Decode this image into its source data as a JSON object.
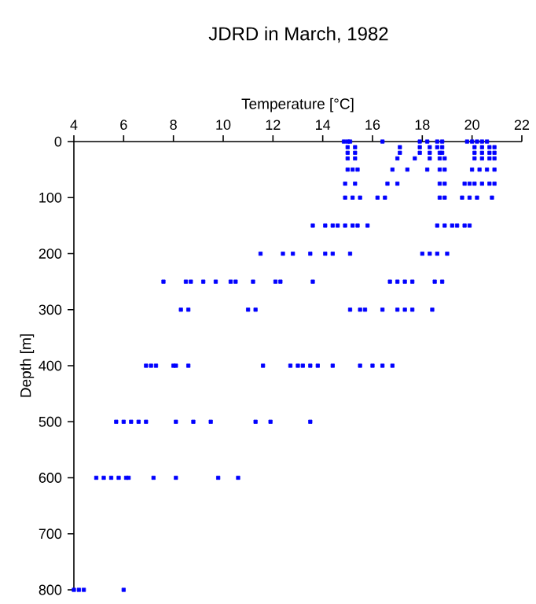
{
  "chart_data": {
    "type": "scatter",
    "title": "JDRD in March, 1982",
    "xlabel": "Temperature [°C]",
    "ylabel": "Depth [m]",
    "xlim": [
      4,
      22
    ],
    "ylim": [
      800,
      0
    ],
    "xticks": [
      4,
      6,
      8,
      10,
      12,
      14,
      16,
      18,
      20,
      22
    ],
    "yticks": [
      0,
      100,
      200,
      300,
      400,
      500,
      600,
      700,
      800
    ],
    "marker": "square",
    "series": [
      {
        "color": "#0000ff",
        "x": [
          14.85,
          15.0,
          15.1,
          16.4,
          17.9,
          18.2,
          18.6,
          18.8,
          19.8,
          20.0,
          20.2,
          20.4,
          20.6,
          15.0,
          15.3,
          17.1,
          17.9,
          18.3,
          18.6,
          18.8,
          20.1,
          20.4,
          20.7,
          20.9,
          15.0,
          15.3,
          17.1,
          17.9,
          18.3,
          18.7,
          18.8,
          20.1,
          20.4,
          20.7,
          20.9,
          15.0,
          15.3,
          17.0,
          17.7,
          18.3,
          18.7,
          18.9,
          20.1,
          20.4,
          20.7,
          20.9,
          15.0,
          15.2,
          15.4,
          16.8,
          17.4,
          18.2,
          18.7,
          18.9,
          20.0,
          20.3,
          20.6,
          20.9,
          14.9,
          15.3,
          16.6,
          17.0,
          18.7,
          18.9,
          19.7,
          19.9,
          20.1,
          20.4,
          20.7,
          20.9,
          14.9,
          15.2,
          15.5,
          16.2,
          16.5,
          18.7,
          18.9,
          19.6,
          19.9,
          20.2,
          20.8,
          13.6,
          14.1,
          14.4,
          14.6,
          14.9,
          15.2,
          15.4,
          15.8,
          18.6,
          18.9,
          19.2,
          19.4,
          19.7,
          19.9,
          11.5,
          12.4,
          12.8,
          13.5,
          14.1,
          14.4,
          15.1,
          18.0,
          18.3,
          18.6,
          19.0,
          7.6,
          8.5,
          8.7,
          9.2,
          9.7,
          10.3,
          10.5,
          11.2,
          12.1,
          12.3,
          13.6,
          16.7,
          17.0,
          17.3,
          17.6,
          18.5,
          18.8,
          8.3,
          8.6,
          11.0,
          11.3,
          15.1,
          15.5,
          15.7,
          16.4,
          17.0,
          17.3,
          17.6,
          18.4,
          6.9,
          7.1,
          7.3,
          8.0,
          8.1,
          8.6,
          11.6,
          12.7,
          13.0,
          13.2,
          13.5,
          13.8,
          14.4,
          15.5,
          16.0,
          16.4,
          16.8,
          5.7,
          6.0,
          6.3,
          6.6,
          6.9,
          8.1,
          8.8,
          9.5,
          11.3,
          11.9,
          13.5,
          4.9,
          5.2,
          5.5,
          5.8,
          6.1,
          6.2,
          7.2,
          8.1,
          9.8,
          10.6,
          4.0,
          4.2,
          4.4,
          6.0
        ],
        "values": [
          0,
          0,
          0,
          0,
          0,
          0,
          0,
          0,
          0,
          0,
          0,
          0,
          0,
          10,
          10,
          10,
          10,
          10,
          10,
          10,
          10,
          10,
          10,
          10,
          20,
          20,
          20,
          20,
          20,
          20,
          20,
          20,
          20,
          20,
          20,
          30,
          30,
          30,
          30,
          30,
          30,
          30,
          30,
          30,
          30,
          30,
          50,
          50,
          50,
          50,
          50,
          50,
          50,
          50,
          50,
          50,
          50,
          50,
          75,
          75,
          75,
          75,
          75,
          75,
          75,
          75,
          75,
          75,
          75,
          75,
          100,
          100,
          100,
          100,
          100,
          100,
          100,
          100,
          100,
          100,
          100,
          150,
          150,
          150,
          150,
          150,
          150,
          150,
          150,
          150,
          150,
          150,
          150,
          150,
          150,
          200,
          200,
          200,
          200,
          200,
          200,
          200,
          200,
          200,
          200,
          200,
          250,
          250,
          250,
          250,
          250,
          250,
          250,
          250,
          250,
          250,
          250,
          250,
          250,
          250,
          250,
          250,
          250,
          300,
          300,
          300,
          300,
          300,
          300,
          300,
          300,
          300,
          300,
          300,
          300,
          400,
          400,
          400,
          400,
          400,
          400,
          400,
          400,
          400,
          400,
          400,
          400,
          400,
          400,
          400,
          400,
          400,
          500,
          500,
          500,
          500,
          500,
          500,
          500,
          500,
          500,
          500,
          500,
          600,
          600,
          600,
          600,
          600,
          600,
          600,
          600,
          600,
          600,
          800,
          800,
          800,
          800
        ]
      }
    ]
  }
}
